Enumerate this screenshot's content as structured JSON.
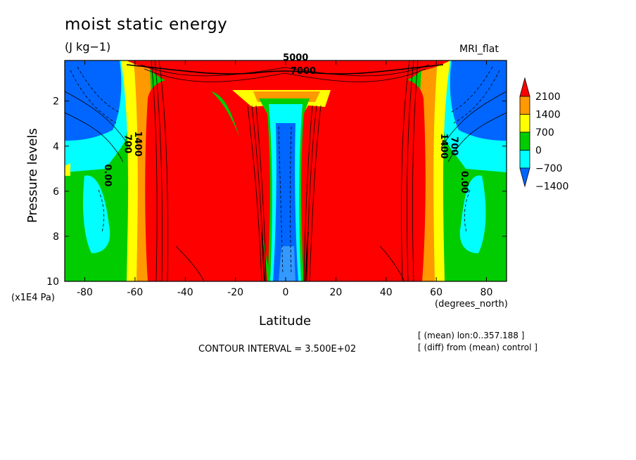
{
  "header": {
    "title": "moist static energy",
    "units": "(J kg−1)",
    "run_name": "MRI_flat"
  },
  "axes": {
    "ylabel": "Pressure levels",
    "yunit": "(x1E4 Pa)",
    "xlabel": "Latitude",
    "xunit": "(degrees_north)"
  },
  "footer": {
    "contour_interval": "CONTOUR INTERVAL = 3.500E+02",
    "note1": "[ (mean) lon:0..357.188 ]",
    "note2": "[ (diff) from (mean) control ]"
  },
  "colors": {
    "red": "#ff0000",
    "orange": "#ff9900",
    "yellow": "#ffff00",
    "green": "#00cc00",
    "cyan": "#00ffff",
    "blue": "#0066ff"
  },
  "chart_data": {
    "type": "heatmap",
    "title": "moist static energy",
    "subtitle": "(J kg−1)",
    "xlabel": "Latitude",
    "ylabel": "Pressure levels",
    "xlim": [
      -88,
      88
    ],
    "ylim": [
      10,
      0.2
    ],
    "x_ticks": [
      "-80",
      "-60",
      "-40",
      "-20",
      "0",
      "20",
      "40",
      "60",
      "80"
    ],
    "x_tick_values": [
      -80,
      -60,
      -40,
      -20,
      0,
      20,
      40,
      60,
      80
    ],
    "y_ticks": [
      "2",
      "4",
      "6",
      "8",
      "10"
    ],
    "y_tick_values": [
      2,
      4,
      6,
      8,
      10
    ],
    "colorbar": {
      "labels": [
        "2100",
        "1400",
        "700",
        "0",
        "−700",
        "−1400"
      ],
      "levels": [
        2100,
        1400,
        700,
        0,
        -700,
        -1400
      ],
      "colors": [
        "#ff0000",
        "#ff9900",
        "#ffff00",
        "#00cc00",
        "#00ffff",
        "#0066ff"
      ]
    },
    "contour_labels": [
      {
        "text": "5000",
        "x": 4,
        "y": 0.2
      },
      {
        "text": "7000",
        "x": 7,
        "y": 0.8
      },
      {
        "text": "700",
        "x": -64,
        "y": 3.9
      },
      {
        "text": "1400",
        "x": -60,
        "y": 3.9
      },
      {
        "text": "0.00",
        "x": -72,
        "y": 5.3
      },
      {
        "text": "0.00",
        "x": 70,
        "y": 5.6
      },
      {
        "text": "700",
        "x": 66,
        "y": 4.0
      },
      {
        "text": "1400",
        "x": 62,
        "y": 4.0
      }
    ],
    "contour_interval": 350
  }
}
